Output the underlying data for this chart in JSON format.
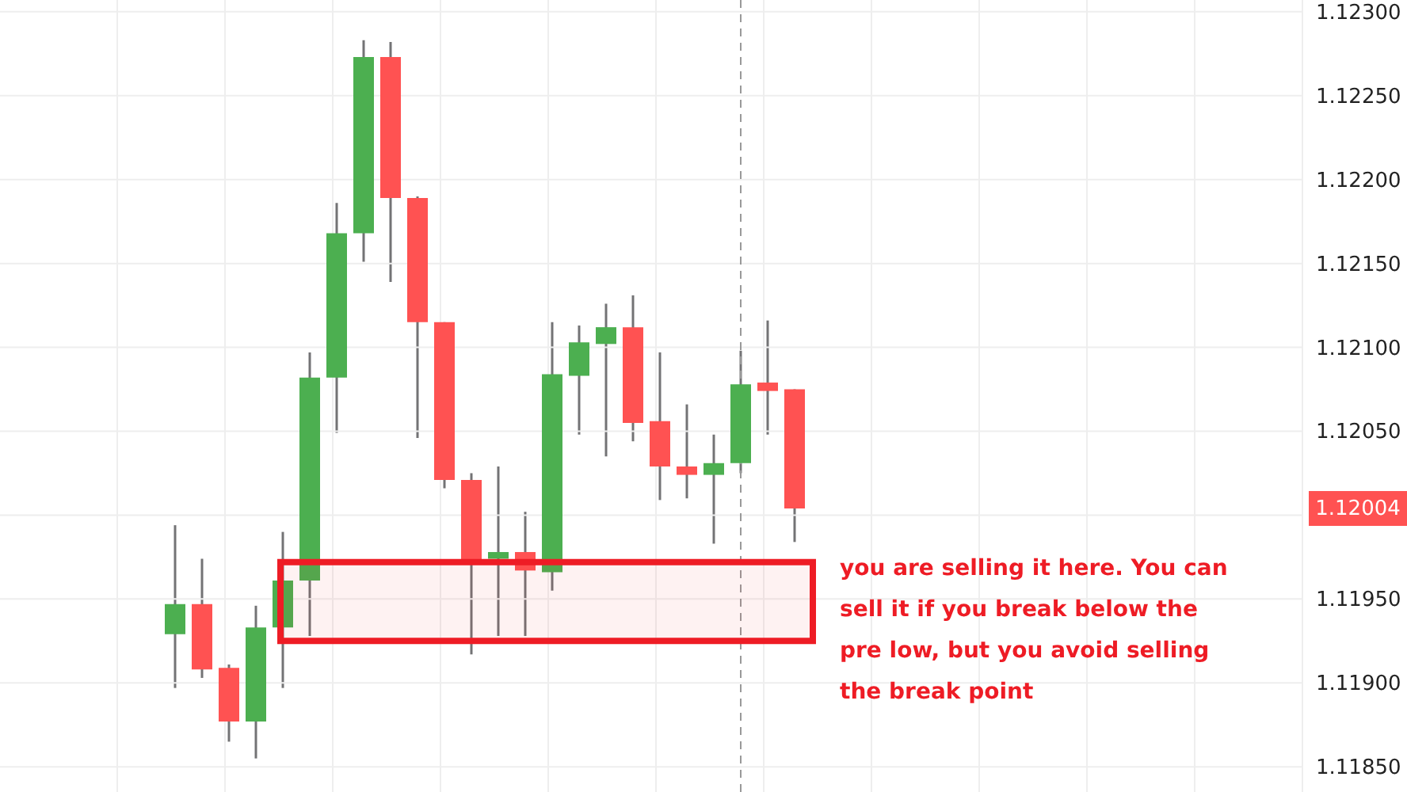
{
  "chart_data": {
    "type": "candlestick",
    "categories": [
      null,
      null,
      null,
      null,
      null,
      null,
      null,
      null,
      null,
      null,
      null,
      null,
      null,
      null,
      null,
      null,
      null,
      null,
      null,
      null,
      null,
      null,
      null,
      null,
      null,
      null,
      null,
      null,
      null,
      null,
      null,
      null,
      null,
      null,
      null,
      null,
      null,
      null,
      null,
      null,
      null,
      null,
      null,
      null,
      null,
      null,
      null,
      null
    ],
    "ohlc": [
      null,
      null,
      null,
      null,
      null,
      null,
      [
        1.11929,
        1.11994,
        1.11897,
        1.11947
      ],
      [
        1.11947,
        1.11974,
        1.11903,
        1.11908
      ],
      [
        1.11909,
        1.11911,
        1.11865,
        1.11877
      ],
      [
        1.11877,
        1.11946,
        1.11855,
        1.11933
      ],
      [
        1.11933,
        1.1199,
        1.11897,
        1.11961
      ],
      [
        1.11961,
        1.12097,
        1.11928,
        1.12082
      ],
      [
        1.12082,
        1.12186,
        1.12049,
        1.12168
      ],
      [
        1.12168,
        1.12283,
        1.12151,
        1.12273
      ],
      [
        1.12273,
        1.12282,
        1.12139,
        1.12189
      ],
      [
        1.12189,
        1.1219,
        1.12046,
        1.12115
      ],
      [
        1.12115,
        1.12115,
        1.12016,
        1.12021
      ],
      [
        1.12021,
        1.12025,
        1.11917,
        1.11971
      ],
      [
        1.11974,
        1.12029,
        1.11928,
        1.11978
      ],
      [
        1.11978,
        1.12002,
        1.11928,
        1.11967
      ],
      [
        1.11966,
        1.12115,
        1.11955,
        1.12084
      ],
      [
        1.12083,
        1.12113,
        1.12048,
        1.12103
      ],
      [
        1.12102,
        1.12126,
        1.12035,
        1.12112
      ],
      [
        1.12112,
        1.12131,
        1.12044,
        1.12055
      ],
      [
        1.12056,
        1.12097,
        1.12009,
        1.12029
      ],
      [
        1.12029,
        1.12066,
        1.1201,
        1.12024
      ],
      [
        1.12024,
        1.12048,
        1.11983,
        1.12031
      ],
      [
        1.12031,
        1.12098,
        1.12025,
        1.12078
      ],
      [
        1.12079,
        1.12116,
        1.12048,
        1.12074
      ],
      [
        1.12075,
        1.12075,
        1.11984,
        1.12004
      ],
      null,
      null,
      null,
      null,
      null,
      null,
      null,
      null,
      null,
      null,
      null,
      null,
      null,
      null,
      null,
      null,
      null,
      null
    ],
    "colors": [
      null,
      null,
      null,
      null,
      null,
      null,
      "#4caf50",
      "#ff5252",
      "#ff5252",
      "#4caf50",
      "#4caf50",
      "#4caf50",
      "#4caf50",
      "#4caf50",
      "#ff5252",
      "#ff5252",
      "#ff5252",
      "#ff5252",
      "#4caf50",
      "#ff5252",
      "#4caf50",
      "#4caf50",
      "#4caf50",
      "#ff5252",
      "#ff5252",
      "#ff5252",
      "#4caf50",
      "#4caf50",
      "#ff5252",
      "#ff5252",
      null,
      null,
      null,
      null,
      null,
      null,
      null,
      null,
      null,
      null,
      null,
      null,
      null,
      null,
      null,
      null,
      null,
      null
    ],
    "ylim": [
      1.11835,
      1.12307
    ],
    "yticks": [
      {
        "value": 1.1185,
        "label": "1.11850"
      },
      {
        "value": 1.119,
        "label": "1.11900"
      },
      {
        "value": 1.1195,
        "label": "1.11950"
      },
      {
        "value": 1.12,
        "label": null
      },
      {
        "value": 1.1205,
        "label": "1.12050"
      },
      {
        "value": 1.121,
        "label": "1.12100"
      },
      {
        "value": 1.1215,
        "label": "1.12150"
      },
      {
        "value": 1.122,
        "label": "1.12200"
      },
      {
        "value": 1.1225,
        "label": "1.12250"
      },
      {
        "value": 1.123,
        "label": "1.12300"
      }
    ],
    "ref_lines": [
      {
        "axis": "y",
        "value": 1.12004,
        "label": "1.12004",
        "color": "#ff5252"
      }
    ],
    "bands": [
      {
        "axis": "y",
        "from": 1.11925,
        "to": 1.11972,
        "label": "you are selling it here. You can\nsell it if you break below the\npre low, but you avoid selling\nthe break point",
        "color": "#ee1c25"
      }
    ],
    "grid": true,
    "tick_labels": "y"
  }
}
